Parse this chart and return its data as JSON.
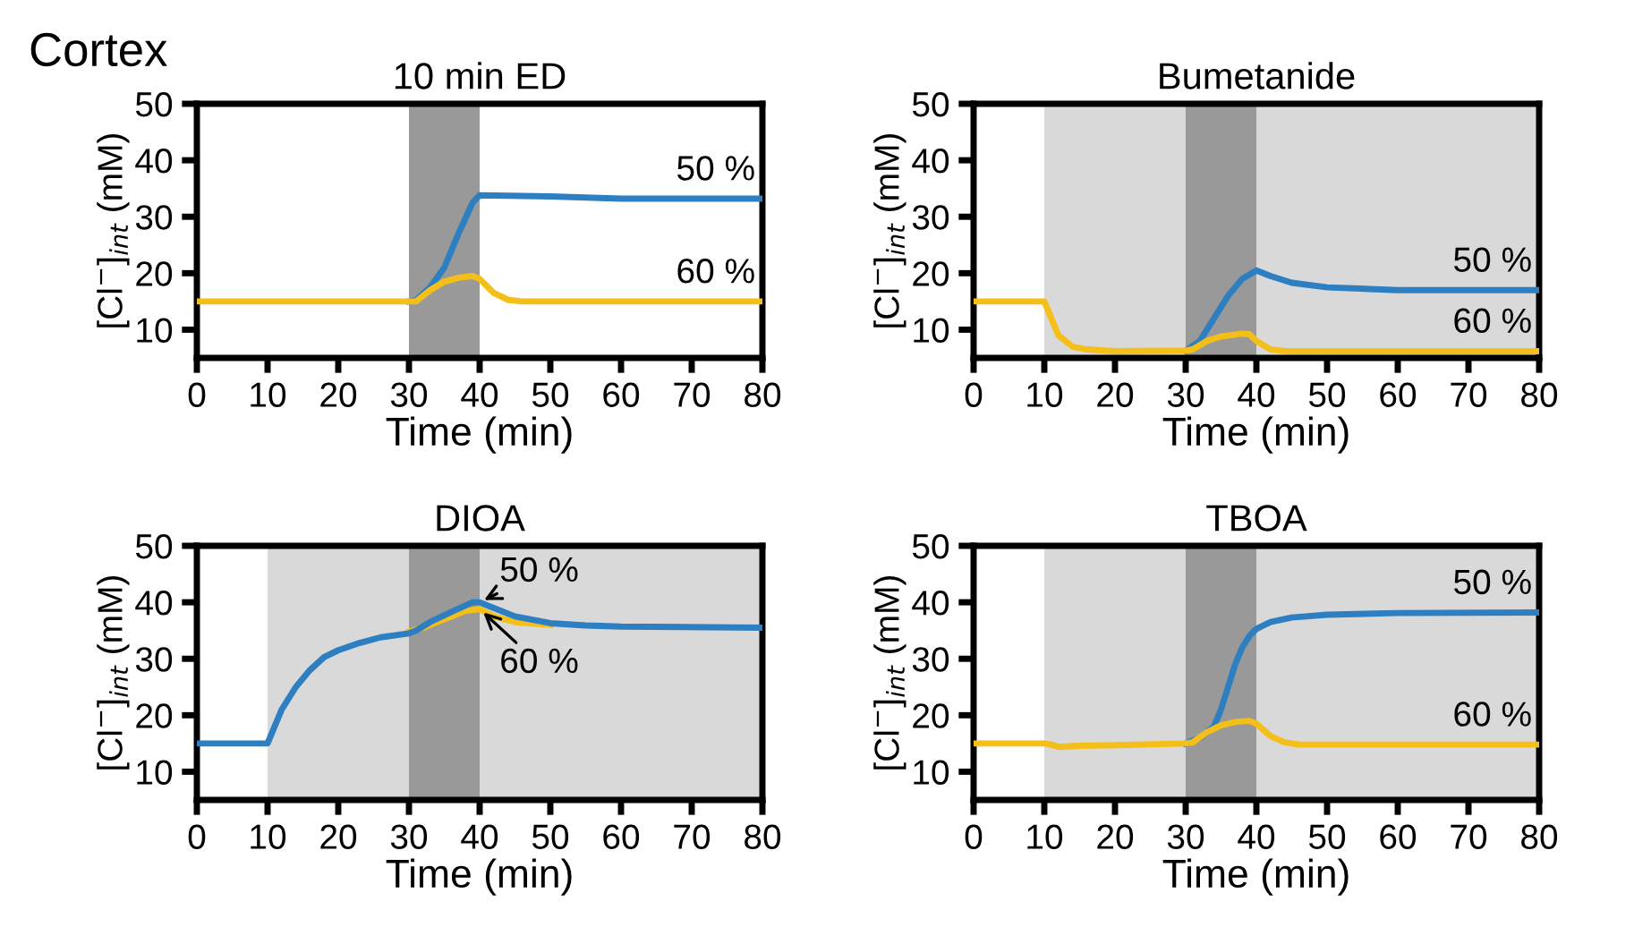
{
  "chart_data": [
    {
      "type": "line",
      "title": "10 min ED",
      "xlabel": "Time (min)",
      "ylabel": "[Cl$^{−}$]$_{int}$ (mM)",
      "xlim": [
        0,
        80
      ],
      "ylim": [
        5,
        50
      ],
      "xticks": [
        0,
        10,
        20,
        30,
        40,
        50,
        60,
        70,
        80
      ],
      "yticks": [
        10,
        20,
        30,
        40,
        50
      ],
      "grid": false,
      "legend": false,
      "annotations": [
        "Cortex"
      ],
      "bands": [
        {
          "axis": "x",
          "from": 30,
          "to": 40,
          "color": "#999999"
        }
      ],
      "series": [
        {
          "name": "50 %",
          "color": "#2e7fc1",
          "x": [
            30,
            31,
            33,
            35,
            37,
            39,
            40,
            50,
            60,
            80
          ],
          "values": [
            15,
            15.2,
            17.5,
            21,
            27,
            32.5,
            33.8,
            33.6,
            33.2,
            33.2
          ]
        },
        {
          "name": "60 %",
          "color": "#f5bf1a",
          "x": [
            0,
            30,
            31,
            33,
            35,
            37,
            39,
            40,
            42,
            44,
            46,
            80
          ],
          "values": [
            15,
            15,
            15,
            17,
            18.5,
            19.2,
            19.5,
            19,
            16.5,
            15.3,
            15,
            15
          ]
        }
      ]
    },
    {
      "type": "line",
      "title": "Bumetanide",
      "xlabel": "Time (min)",
      "ylabel": "[Cl$^{−}$]$_{int}$ (mM)",
      "xlim": [
        0,
        80
      ],
      "ylim": [
        5,
        50
      ],
      "xticks": [
        0,
        10,
        20,
        30,
        40,
        50,
        60,
        70,
        80
      ],
      "yticks": [
        10,
        20,
        30,
        40,
        50
      ],
      "grid": false,
      "legend": false,
      "bands": [
        {
          "axis": "x",
          "from": 10,
          "to": 80,
          "color": "#d9d9d9"
        },
        {
          "axis": "x",
          "from": 30,
          "to": 40,
          "color": "#999999"
        }
      ],
      "series": [
        {
          "name": "50 %",
          "color": "#2e7fc1",
          "x": [
            30,
            32,
            34,
            36,
            38,
            40,
            42,
            45,
            50,
            60,
            80
          ],
          "values": [
            6.3,
            8,
            12,
            16,
            19,
            20.5,
            19.5,
            18.3,
            17.5,
            17,
            17
          ]
        },
        {
          "name": "60 %",
          "color": "#f5bf1a",
          "x": [
            0,
            10,
            11,
            12,
            14,
            16,
            20,
            30,
            31,
            33,
            35,
            38,
            39,
            40,
            42,
            44,
            80
          ],
          "values": [
            15,
            15,
            12,
            9,
            7,
            6.5,
            6.2,
            6.3,
            6.5,
            8,
            8.8,
            9.3,
            9.2,
            8,
            6.5,
            6.2,
            6.2
          ]
        }
      ]
    },
    {
      "type": "line",
      "title": "DIOA",
      "xlabel": "Time (min)",
      "ylabel": "[Cl$^{−}$]$_{int}$ (mM)",
      "xlim": [
        0,
        80
      ],
      "ylim": [
        5,
        50
      ],
      "xticks": [
        0,
        10,
        20,
        30,
        40,
        50,
        60,
        70,
        80
      ],
      "yticks": [
        10,
        20,
        30,
        40,
        50
      ],
      "grid": false,
      "legend": false,
      "annotations": [
        {
          "text": "50 %",
          "x": 40,
          "y": 40
        },
        {
          "text": "60 %",
          "x": 40,
          "y": 38.8
        }
      ],
      "bands": [
        {
          "axis": "x",
          "from": 10,
          "to": 80,
          "color": "#d9d9d9"
        },
        {
          "axis": "x",
          "from": 30,
          "to": 40,
          "color": "#999999"
        }
      ],
      "series": [
        {
          "color": "#f5bf1a",
          "x": [
            30,
            32,
            35,
            38,
            40,
            42,
            45,
            50
          ],
          "values": [
            34.8,
            35.5,
            37,
            38.5,
            38.8,
            37.5,
            36.5,
            36
          ]
        },
        {
          "color": "#2e7fc1",
          "x": [
            0,
            10,
            11,
            12,
            14,
            16,
            18,
            20,
            23,
            26,
            30,
            31,
            33,
            36,
            39,
            40,
            42,
            45,
            50,
            55,
            60,
            80
          ],
          "values": [
            15,
            15,
            18,
            21,
            25,
            28,
            30.3,
            31.5,
            32.8,
            33.8,
            34.5,
            35,
            36.5,
            38.3,
            40,
            40,
            39,
            37.5,
            36.3,
            35.9,
            35.7,
            35.5
          ]
        }
      ]
    },
    {
      "type": "line",
      "title": "TBOA",
      "xlabel": "Time (min)",
      "ylabel": "[Cl$^{−}$]$_{int}$ (mM)",
      "xlim": [
        0,
        80
      ],
      "ylim": [
        5,
        50
      ],
      "xticks": [
        0,
        10,
        20,
        30,
        40,
        50,
        60,
        70,
        80
      ],
      "yticks": [
        10,
        20,
        30,
        40,
        50
      ],
      "grid": false,
      "legend": false,
      "bands": [
        {
          "axis": "x",
          "from": 10,
          "to": 80,
          "color": "#d9d9d9"
        },
        {
          "axis": "x",
          "from": 30,
          "to": 40,
          "color": "#999999"
        }
      ],
      "series": [
        {
          "name": "50 %",
          "color": "#2e7fc1",
          "x": [
            30,
            32,
            34,
            35,
            36,
            37,
            38,
            39,
            40,
            42,
            45,
            50,
            60,
            80
          ],
          "values": [
            15,
            16,
            18,
            21,
            25,
            29,
            32,
            34,
            35.3,
            36.5,
            37.3,
            37.8,
            38.1,
            38.2
          ]
        },
        {
          "name": "60 %",
          "color": "#f5bf1a",
          "x": [
            0,
            10,
            11,
            12,
            15,
            20,
            30,
            31,
            33,
            35,
            37,
            39,
            40,
            42,
            44,
            46,
            80
          ],
          "values": [
            15,
            15,
            14.8,
            14.4,
            14.6,
            14.7,
            15,
            15.2,
            17,
            18.2,
            18.8,
            19,
            18.5,
            16.3,
            15.2,
            14.8,
            14.8
          ]
        }
      ]
    }
  ]
}
